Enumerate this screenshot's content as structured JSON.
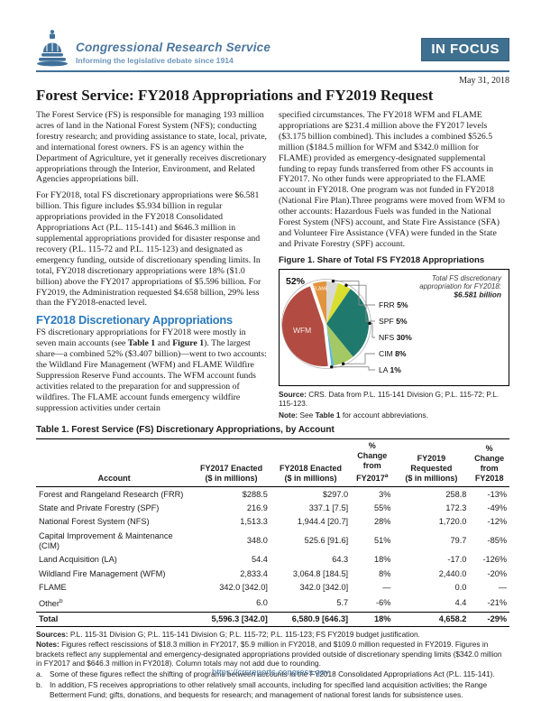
{
  "header": {
    "org_name": "Congressional Research Service",
    "tagline": "Informing the legislative debate since 1914",
    "badge": "IN FOCUS"
  },
  "date": "May 31, 2018",
  "title": "Forest Service: FY2018 Appropriations and FY2019 Request",
  "left_column": {
    "para1": "The Forest Service (FS) is responsible for managing 193 million acres of land in the National Forest System (NFS); conducting forestry research; and providing assistance to state, local, private, and international forest owners. FS is an agency within the Department of Agriculture, yet it generally receives discretionary appropriations through the Interior, Environment, and Related Agencies appropriations bill.",
    "para2": "For FY2018, total FS discretionary appropriations were $6.581 billion. This figure includes $5.934 billion in regular appropriations provided in the FY2018 Consolidated Appropriations Act (P.L. 115-141) and $646.3 million in supplemental appropriations provided for disaster response and recovery (P.L. 115-72 and P.L. 115-123) and designated as emergency funding, outside of discretionary spending limits. In total, FY2018 discretionary appropriations were 18% ($1.0 billion) above the FY2017 appropriations of $5.596 billion. For FY2019, the Administration requested $4.658 billion, 29% less than the FY2018-enacted level.",
    "heading": "FY2018 Discretionary Appropriations",
    "para3_segments": [
      "FS discretionary appropriations for FY2018 were mostly in seven main accounts (see ",
      "Table 1",
      " and ",
      "Figure 1",
      "). The largest share—a combined 52% ($3.407 billion)—went to two accounts: the Wildland Fire Management (WFM) and FLAME Wildfire Suppression Reserve Fund accounts. The WFM account funds activities related to the preparation for and suppression of wildfires. The FLAME account funds emergency wildfire suppression activities under certain"
    ]
  },
  "right_column": {
    "para1": "specified circumstances. The FY2018 WFM and FLAME appropriations are $231.4 million above the FY2017 levels ($3.175 billion combined). This includes a combined $526.5 million ($184.5 million for WFM and $342.0 million for FLAME) provided as emergency-designated supplemental funding to repay funds transferred from other FS accounts in FY2017. No other funds were appropriated to the FLAME account in FY2018. One program was not funded in FY2018 (National Fire Plan).Three programs were moved from WFM to other accounts: Hazardous Fuels was funded in the National Forest System (NFS) account, and State Fire Assistance (SFA) and Volunteer Fire Assistance (VFA) were funded in the State and Private Forestry (SPF) account."
  },
  "figure": {
    "caption": "Figure 1. Share of Total FS FY2018 Appropriations",
    "source_label": "Source:",
    "source_text": " CRS. Data from P.L. 115-141 Division G; P.L. 115-72; P.L. 115-123.",
    "note_label": "Note:",
    "note_segments": [
      " See ",
      "Table 1",
      " for account abbreviations."
    ]
  },
  "chart_data": {
    "type": "pie",
    "title": "Figure 1. Share of Total FS FY2018 Appropriations",
    "total_annotation_lines": [
      "Total FS discretionary",
      "appropriation for FY2018:",
      "$6.581 billion"
    ],
    "combined_label": "52%",
    "combined_note": "WFM + FLAME = 52% ($3.407 billion) of $6.581 billion total",
    "legend_position": "right",
    "slices": [
      {
        "name": "FRR",
        "share_pct": 4.5,
        "color": "#d8d8d4",
        "legend": "5%"
      },
      {
        "name": "SPF",
        "share_pct": 5.1,
        "color": "#d9de2f",
        "legend": "5%"
      },
      {
        "name": "NFS",
        "share_pct": 29.5,
        "color": "#1f7a6d",
        "legend": "30%"
      },
      {
        "name": "CIM",
        "share_pct": 8.0,
        "color": "#a4c864",
        "legend": "8%"
      },
      {
        "name": "LA",
        "share_pct": 1.0,
        "color": "#52b8e8",
        "legend": "1%"
      },
      {
        "name": "WFM",
        "share_pct": 46.6,
        "color": "#b24b42",
        "label_inside": "WFM",
        "exploded": true
      },
      {
        "name": "FLAME",
        "share_pct": 5.2,
        "color": "#e2943e",
        "label_inside": "FLAME"
      }
    ]
  },
  "table": {
    "title": "Table 1. Forest Service (FS) Discretionary Appropriations, by Account",
    "columns": [
      "Account",
      "FY2017 Enacted\n($ in millions)",
      "FY2018 Enacted\n($ in millions)",
      "%\nChange\nfrom\nFY2017^{a}",
      "FY2019\nRequested\n($ in millions)",
      "%\nChange\nfrom\nFY2018"
    ],
    "rows": [
      [
        "Forest and Rangeland Research (FRR)",
        "$288.5",
        "$297.0",
        "3%",
        "258.8",
        "-13%"
      ],
      [
        "State and Private Forestry (SPF)",
        "216.9",
        "337.1 [7.5]",
        "55%",
        "172.3",
        "-49%"
      ],
      [
        "National Forest System (NFS)",
        "1,513.3",
        "1,944.4 [20.7]",
        "28%",
        "1,720.0",
        "-12%"
      ],
      [
        "Capital Improvement & Maintenance (CIM)",
        "348.0",
        "525.6 [91.6]",
        "51%",
        "79.7",
        "-85%"
      ],
      [
        "Land Acquisition (LA)",
        "54.4",
        "64.3",
        "18%",
        "-17.0",
        "-126%"
      ],
      [
        "Wildland Fire Management (WFM)",
        "2,833.4",
        "3,064.8 [184.5]",
        "8%",
        "2,440.0",
        "-20%"
      ],
      [
        "FLAME",
        "342.0 [342.0]",
        "342.0 [342.0]",
        "—",
        "0.0",
        "—"
      ],
      [
        "Other^{b}",
        "6.0",
        "5.7",
        "-6%",
        "4.4",
        "-21%"
      ]
    ],
    "total": [
      "Total",
      "5,596.3 [342.0]",
      "6,580.9 [646.3]",
      "18%",
      "4,658.2",
      "-29%"
    ]
  },
  "table_notes": {
    "sources_label": "Sources:",
    "sources_text": " P.L. 115-31 Division G; P.L. 115-141 Division G; P.L. 115-72; P.L. 115-123; FS FY2019 budget justification.",
    "notes_label": "Notes:",
    "notes_text": " Figures reflect rescissions of $18.3 million in FY2017, $5.9 million in FY2018, and $109.0 million requested in FY2019. Figures in brackets reflect any supplemental and emergency-designated appropriations provided outside of discretionary spending limits ($342.0 million in FY2017 and $646.3 million in FY2018). Column totals may not add due to rounding.",
    "footnotes": [
      {
        "marker": "a.",
        "text": "Some of these figures reflect the shifting of programs between accounts in the FY2018 Consolidated Appropriations Act (P.L. 115-141)."
      },
      {
        "marker": "b.",
        "text": "In addition, FS receives appropriations to other relatively small accounts, including for specified land acquisition activities; the Range Betterment Fund; gifts, donations, and bequests for research; and management of national forest lands for subsistence uses."
      }
    ]
  },
  "footer": {
    "url": "https://crsreports.congress.gov"
  }
}
